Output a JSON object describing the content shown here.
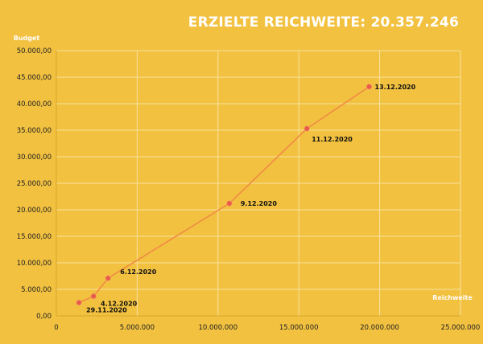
{
  "colors": {
    "background": "#f2c140",
    "grid": "#f8e2a0",
    "axis": "#d7a72a",
    "line": "#f08c43",
    "marker": "#e85a4c",
    "title": "#ffffff"
  },
  "chart_data": {
    "type": "line",
    "title": "ERZIELTE REICHWEITE: 20.357.246",
    "xlabel": "Reichweite",
    "ylabel": "Budget",
    "xlim": [
      0,
      25000000
    ],
    "ylim": [
      0,
      50000
    ],
    "grid": true,
    "legend": "none",
    "x_ticks": [
      0,
      5000000,
      10000000,
      15000000,
      20000000,
      25000000
    ],
    "x_tick_labels": [
      "0",
      "5.000.000",
      "10.000.000",
      "15.000.000",
      "20.000.000",
      "25.000.000"
    ],
    "y_ticks": [
      0,
      5000,
      10000,
      15000,
      20000,
      25000,
      30000,
      35000,
      40000,
      45000,
      50000
    ],
    "y_tick_labels": [
      "0,00",
      "5.000,00",
      "10.000,00",
      "15.000,00",
      "20.000,00",
      "25.000,00",
      "30.000,00",
      "35.000,00",
      "40.000,00",
      "45.000,00",
      "50.000,00"
    ],
    "series": [
      {
        "points": [
          {
            "x": 1400000,
            "y": 2500,
            "label": "29.11.2020"
          },
          {
            "x": 2300000,
            "y": 3700,
            "label": "4.12.2020"
          },
          {
            "x": 3200000,
            "y": 7100,
            "label": "6.12.2020"
          },
          {
            "x": 10700000,
            "y": 21200,
            "label": "9.12.2020"
          },
          {
            "x": 15500000,
            "y": 35300,
            "label": "11.12.2020"
          },
          {
            "x": 19350000,
            "y": 43200,
            "label": "13.12.2020"
          }
        ]
      }
    ]
  }
}
